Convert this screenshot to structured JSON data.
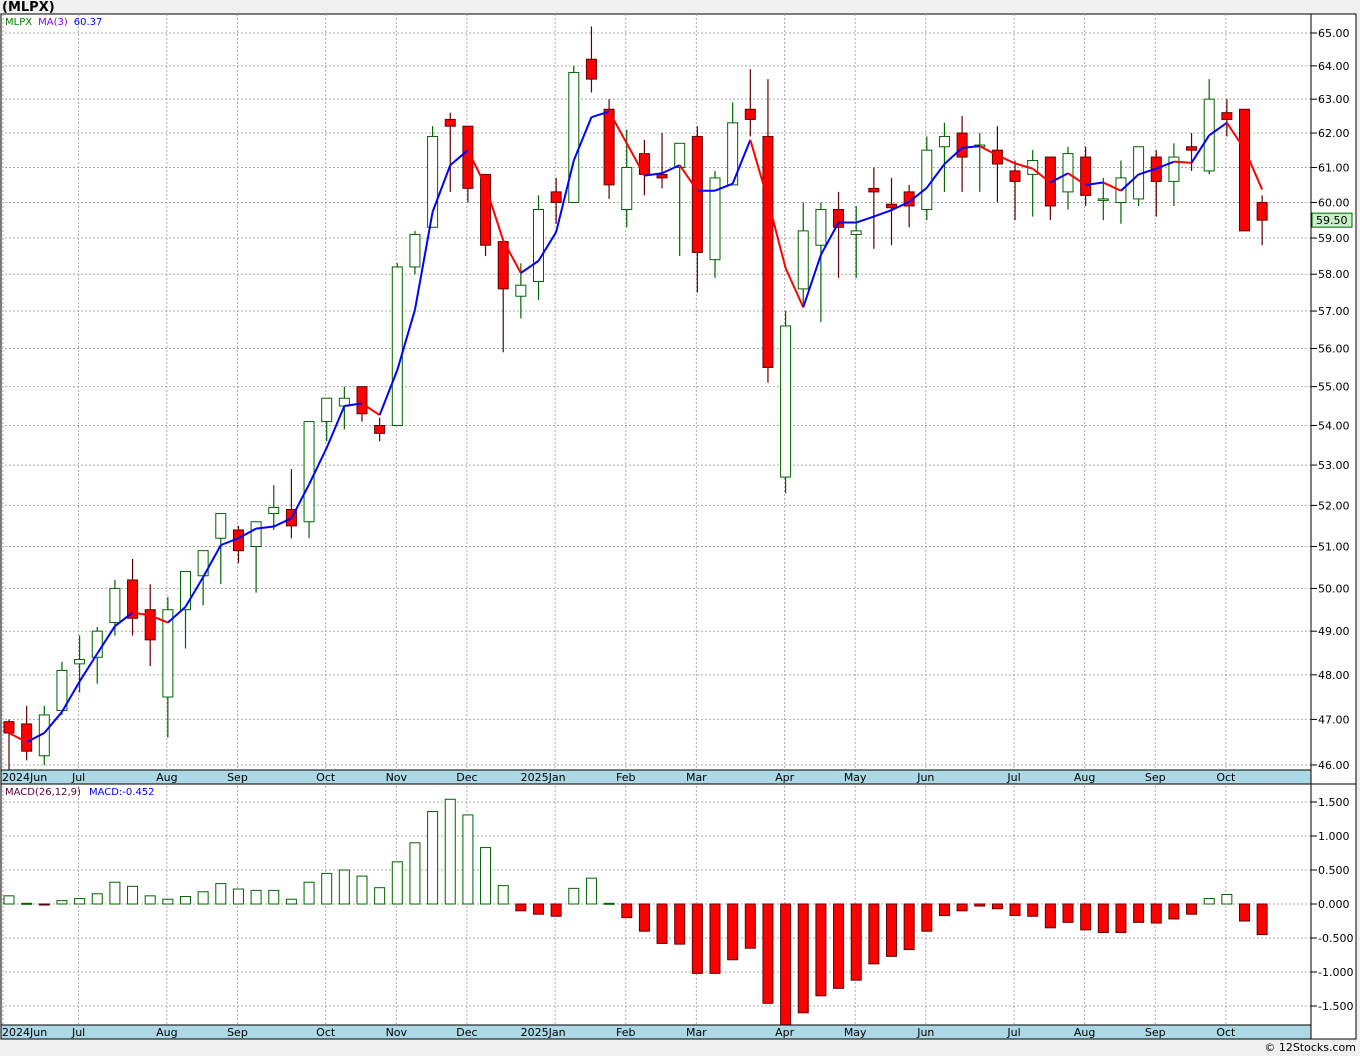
{
  "title": "(MLPX)",
  "watermark": "© 12Stocks.com",
  "price_legend": {
    "symbol": "MLPX",
    "ma_label": "MA(3)",
    "ma_value": "60.37"
  },
  "macd_legend": {
    "label": "MACD(26,12,9)",
    "value": "MACD:-0.452"
  },
  "last_price_label": "59.50",
  "colors": {
    "up": "#006400",
    "down": "#ff0000",
    "down_wick": "#600000",
    "ma_up": "#0000ff",
    "ma_down": "#ff0000",
    "axis_band": "#add8e6",
    "last_price_bg": "#c8f0c8"
  },
  "chart_data": [
    {
      "type": "candlestick",
      "title": "(MLPX) weekly",
      "yscale": "log",
      "ylim": [
        46,
        65
      ],
      "yticks": [
        "46.00",
        "47.00",
        "48.00",
        "49.00",
        "50.00",
        "51.00",
        "52.00",
        "53.00",
        "54.00",
        "55.00",
        "56.00",
        "57.00",
        "58.00",
        "59.00",
        "60.00",
        "61.00",
        "62.00",
        "63.00",
        "64.00",
        "65.00"
      ],
      "month_labels": [
        {
          "label": "2024Jun",
          "week": 0
        },
        {
          "label": "Jul",
          "week": 4
        },
        {
          "label": "Aug",
          "week": 9
        },
        {
          "label": "Sep",
          "week": 13
        },
        {
          "label": "Oct",
          "week": 18
        },
        {
          "label": "Nov",
          "week": 22
        },
        {
          "label": "Dec",
          "week": 26
        },
        {
          "label": "2025Jan",
          "week": 31
        },
        {
          "label": "Feb",
          "week": 35
        },
        {
          "label": "Mar",
          "week": 39
        },
        {
          "label": "Apr",
          "week": 44
        },
        {
          "label": "May",
          "week": 48
        },
        {
          "label": "Jun",
          "week": 52
        },
        {
          "label": "Jul",
          "week": 57
        },
        {
          "label": "Aug",
          "week": 61
        },
        {
          "label": "Sep",
          "week": 65
        },
        {
          "label": "Oct",
          "week": 69
        }
      ],
      "ma_period": 3,
      "ohlc": [
        [
          46.95,
          47.0,
          45.9,
          46.7
        ],
        [
          46.9,
          47.3,
          46.1,
          46.3
        ],
        [
          46.2,
          47.3,
          46.0,
          47.1
        ],
        [
          47.2,
          48.3,
          47.1,
          48.1
        ],
        [
          48.25,
          48.9,
          47.6,
          48.35
        ],
        [
          48.4,
          49.1,
          47.8,
          49.0
        ],
        [
          49.2,
          50.2,
          48.9,
          50.0
        ],
        [
          50.2,
          50.7,
          48.9,
          49.3
        ],
        [
          49.5,
          50.1,
          48.2,
          48.8
        ],
        [
          47.5,
          49.8,
          46.6,
          49.5
        ],
        [
          49.5,
          50.4,
          48.6,
          50.4
        ],
        [
          50.3,
          50.9,
          49.6,
          50.9
        ],
        [
          51.2,
          51.8,
          50.1,
          51.8
        ],
        [
          51.4,
          51.5,
          50.6,
          50.9
        ],
        [
          51.0,
          51.6,
          49.9,
          51.6
        ],
        [
          51.8,
          52.5,
          51.4,
          51.95
        ],
        [
          51.9,
          52.9,
          51.2,
          51.5
        ],
        [
          51.6,
          54.1,
          51.2,
          54.1
        ],
        [
          54.1,
          54.7,
          53.6,
          54.7
        ],
        [
          54.5,
          55.0,
          53.9,
          54.7
        ],
        [
          55.0,
          55.0,
          54.1,
          54.3
        ],
        [
          54.0,
          54.2,
          53.6,
          53.8
        ],
        [
          54.0,
          58.3,
          54.0,
          58.2
        ],
        [
          58.2,
          59.2,
          58.0,
          59.1
        ],
        [
          59.3,
          62.2,
          59.3,
          61.9
        ],
        [
          62.4,
          62.6,
          60.3,
          62.2
        ],
        [
          62.2,
          62.2,
          60.0,
          60.4
        ],
        [
          60.8,
          60.8,
          58.5,
          58.8
        ],
        [
          58.9,
          58.9,
          55.9,
          57.6
        ],
        [
          57.4,
          58.3,
          56.8,
          57.7
        ],
        [
          57.8,
          60.2,
          57.3,
          59.8
        ],
        [
          60.3,
          60.7,
          59.4,
          60.0
        ],
        [
          60.0,
          64.0,
          60.0,
          63.8
        ],
        [
          64.2,
          65.2,
          63.2,
          63.6
        ],
        [
          62.7,
          63.0,
          60.1,
          60.5
        ],
        [
          59.8,
          62.1,
          59.3,
          61.0
        ],
        [
          61.4,
          61.8,
          60.2,
          60.8
        ],
        [
          60.8,
          62.0,
          60.4,
          60.7
        ],
        [
          61.0,
          61.7,
          58.5,
          61.7
        ],
        [
          61.9,
          62.2,
          57.5,
          58.6
        ],
        [
          58.4,
          60.9,
          57.9,
          60.7
        ],
        [
          60.5,
          62.9,
          60.5,
          62.3
        ],
        [
          62.7,
          63.9,
          61.9,
          62.4
        ],
        [
          61.9,
          63.6,
          55.1,
          55.5
        ],
        [
          52.7,
          57.0,
          52.3,
          56.6
        ],
        [
          57.6,
          60.0,
          57.2,
          59.2
        ],
        [
          58.8,
          60.0,
          56.7,
          59.8
        ],
        [
          59.8,
          60.3,
          57.9,
          59.3
        ],
        [
          59.1,
          59.9,
          57.9,
          59.2
        ],
        [
          60.4,
          61.0,
          58.7,
          60.3
        ],
        [
          59.95,
          60.7,
          58.8,
          59.85
        ],
        [
          60.3,
          60.5,
          59.3,
          59.9
        ],
        [
          59.8,
          61.9,
          59.5,
          61.5
        ],
        [
          61.6,
          62.3,
          60.3,
          61.9
        ],
        [
          62.0,
          62.5,
          60.3,
          61.3
        ],
        [
          61.6,
          62.0,
          60.3,
          61.65
        ],
        [
          61.5,
          62.2,
          60.0,
          61.1
        ],
        [
          60.9,
          61.2,
          59.5,
          60.6
        ],
        [
          60.8,
          61.5,
          59.6,
          61.2
        ],
        [
          61.3,
          61.3,
          59.5,
          59.9
        ],
        [
          60.3,
          61.6,
          59.8,
          61.4
        ],
        [
          61.3,
          61.6,
          59.9,
          60.2
        ],
        [
          60.1,
          60.7,
          59.5,
          60.1
        ],
        [
          60.0,
          61.2,
          59.4,
          60.7
        ],
        [
          60.1,
          61.6,
          59.9,
          61.6
        ],
        [
          61.3,
          61.5,
          59.6,
          60.6
        ],
        [
          60.6,
          61.7,
          59.9,
          61.3
        ],
        [
          61.6,
          62.0,
          60.9,
          61.5
        ],
        [
          60.9,
          63.6,
          60.8,
          63.0
        ],
        [
          62.6,
          63.0,
          61.9,
          62.4
        ],
        [
          62.7,
          62.7,
          59.2,
          59.2
        ],
        [
          60.0,
          60.2,
          58.8,
          59.5
        ]
      ]
    },
    {
      "type": "bar",
      "title": "MACD(26,12,9)",
      "ylim": [
        -1.75,
        1.75
      ],
      "yticks": [
        "1.500",
        "1.000",
        "0.500",
        "0.000",
        "-0.500",
        "-1.000",
        "-1.500"
      ],
      "values": [
        0.12,
        0.01,
        -0.01,
        0.05,
        0.08,
        0.15,
        0.32,
        0.26,
        0.12,
        0.07,
        0.11,
        0.18,
        0.3,
        0.22,
        0.2,
        0.2,
        0.07,
        0.32,
        0.45,
        0.5,
        0.41,
        0.24,
        0.62,
        0.9,
        1.36,
        1.54,
        1.31,
        0.83,
        0.27,
        -0.1,
        -0.15,
        -0.18,
        0.23,
        0.38,
        0.01,
        -0.2,
        -0.4,
        -0.58,
        -0.59,
        -1.02,
        -1.02,
        -0.82,
        -0.65,
        -1.46,
        -1.78,
        -1.6,
        -1.35,
        -1.24,
        -1.12,
        -0.88,
        -0.77,
        -0.67,
        -0.4,
        -0.17,
        -0.1,
        -0.03,
        -0.07,
        -0.17,
        -0.18,
        -0.35,
        -0.27,
        -0.38,
        -0.42,
        -0.42,
        -0.27,
        -0.28,
        -0.22,
        -0.15,
        0.08,
        0.14,
        -0.25,
        -0.45
      ]
    }
  ]
}
